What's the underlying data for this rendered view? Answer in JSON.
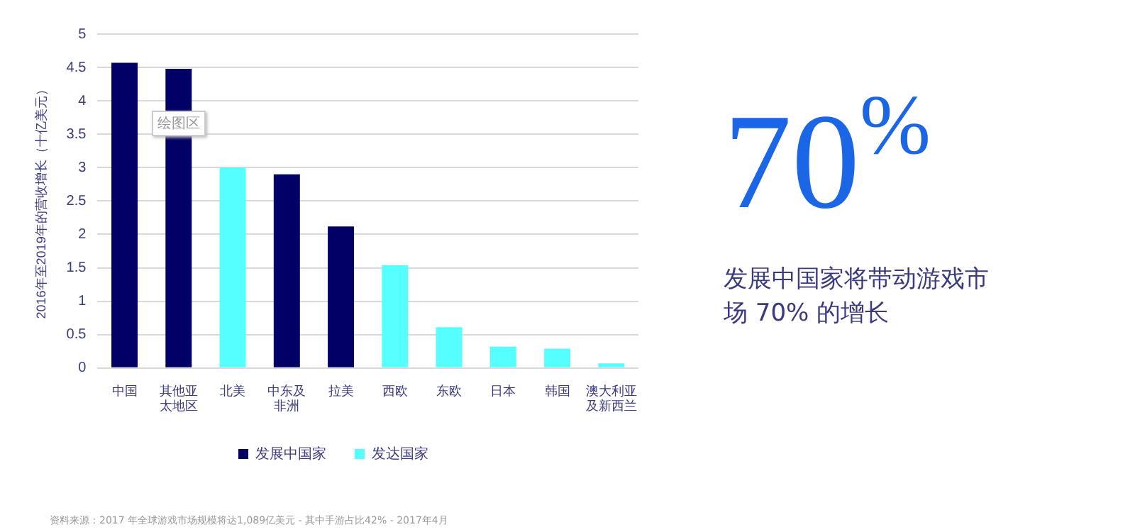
{
  "chart_data": {
    "type": "bar",
    "ylabel": "2016年至2019年的营收增长（十亿美元）",
    "categories": [
      "中国",
      "其他亚太地区",
      "北美",
      "中东及非洲",
      "拉美",
      "西欧",
      "东欧",
      "日本",
      "韩国",
      "澳大利亚及新西兰"
    ],
    "series": [
      {
        "name": "发展中国家",
        "color": "#000066",
        "values": [
          4.57,
          4.48,
          null,
          2.9,
          2.12,
          null,
          null,
          null,
          null,
          null
        ]
      },
      {
        "name": "发达国家",
        "color": "#55ffff",
        "values": [
          null,
          null,
          3.0,
          null,
          null,
          1.54,
          0.61,
          0.32,
          0.29,
          0.07
        ]
      }
    ],
    "ylim": [
      0,
      5
    ],
    "yticks": [
      0,
      0.5,
      1,
      1.5,
      2,
      2.5,
      3,
      3.5,
      4,
      4.5,
      5
    ],
    "grid": "y",
    "legend": "bottom",
    "annotations": [
      "70$^{%}$",
      "发展中国家将带动游戏市场 70% 的增长",
      "绘图区",
      "资料来源：2017 年全球游戏市场规模将达1,089亿美元 - 其中手游占比42% - 2017年4月"
    ]
  }
}
